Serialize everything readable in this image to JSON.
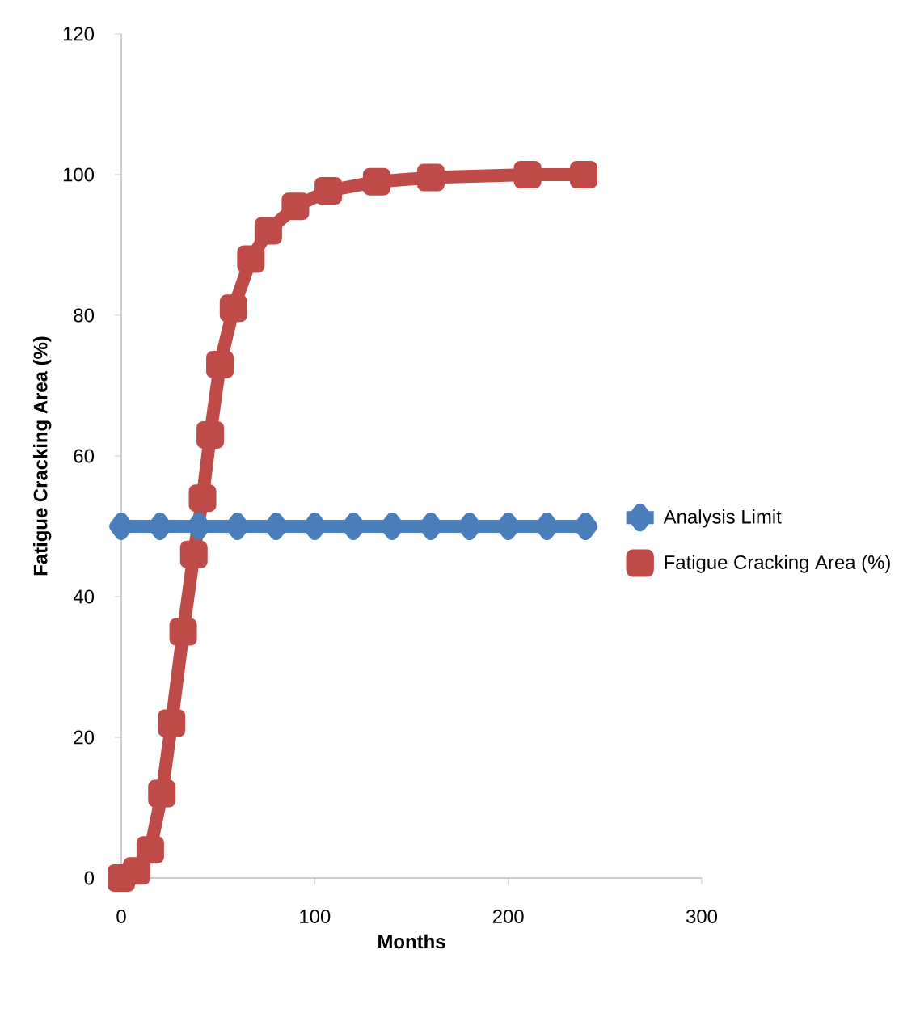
{
  "chart_data": {
    "type": "line",
    "xlabel": "Months",
    "ylabel": "Fatigue Cracking Area (%)",
    "xlim": [
      0,
      300
    ],
    "xticks": [
      0,
      100,
      200,
      300
    ],
    "ylim": [
      0,
      120
    ],
    "yticks": [
      0,
      20,
      40,
      60,
      80,
      100,
      120
    ],
    "grid": false,
    "legend": "right",
    "series": [
      {
        "name": "Analysis Limit",
        "color": "#4a7ebb",
        "marker": "diamond",
        "x": [
          0,
          20,
          40,
          60,
          80,
          100,
          120,
          140,
          160,
          180,
          200,
          220,
          240
        ],
        "values": [
          50,
          50,
          50,
          50,
          50,
          50,
          50,
          50,
          50,
          50,
          50,
          50,
          50
        ]
      },
      {
        "name": "Fatigue Cracking Area (%)",
        "color": "#be4b48",
        "marker": "square",
        "x": [
          0,
          8,
          15,
          21,
          26,
          32,
          37.5,
          42,
          46,
          51,
          58,
          67,
          76,
          90,
          107,
          132,
          160,
          210,
          239
        ],
        "values": [
          0,
          1,
          4,
          12,
          22,
          35,
          46,
          54,
          63,
          73,
          81,
          88,
          92,
          95.5,
          97.7,
          99,
          99.6,
          100,
          100
        ]
      }
    ]
  }
}
